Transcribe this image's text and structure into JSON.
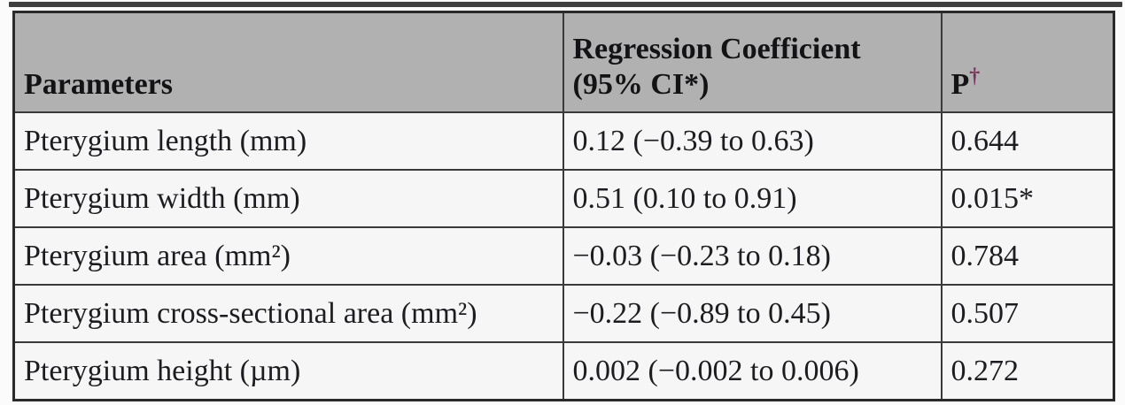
{
  "page": {
    "background_color": "#fbfbfb",
    "top_bar_color": "#3e3e3e"
  },
  "table": {
    "colors": {
      "header_bg": "#b1b1b1",
      "row_bg": "#f6f6f6",
      "border": "#2a2a2a",
      "text": "#1d1d21",
      "dagger": "#79335a"
    },
    "header": {
      "parameters": "Parameters",
      "coefficient_line1": "Regression Coefficient",
      "coefficient_line2": "(95% CI*)",
      "p_label": "P",
      "p_superscript": "†"
    },
    "rows": [
      {
        "parameter": "Pterygium length (mm)",
        "coefficient": "0.12 (−0.39 to 0.63)",
        "p": "0.644"
      },
      {
        "parameter": "Pterygium width (mm)",
        "coefficient": "0.51 (0.10 to 0.91)",
        "p": "0.015*"
      },
      {
        "parameter": "Pterygium area (mm²)",
        "coefficient": "−0.03 (−0.23 to 0.18)",
        "p": "0.784"
      },
      {
        "parameter": "Pterygium cross-sectional area (mm²)",
        "coefficient": "−0.22 (−0.89 to 0.45)",
        "p": "0.507"
      },
      {
        "parameter": "Pterygium height (µm)",
        "coefficient": "0.002 (−0.002 to 0.006)",
        "p": "0.272"
      }
    ]
  },
  "chart_data": {
    "type": "table",
    "title": "",
    "columns": [
      "Parameters",
      "Regression Coefficient (95% CI*)",
      "P†"
    ],
    "rows": [
      [
        "Pterygium length (mm)",
        "0.12 (−0.39 to 0.63)",
        "0.644"
      ],
      [
        "Pterygium width (mm)",
        "0.51 (0.10 to 0.91)",
        "0.015*"
      ],
      [
        "Pterygium area (mm²)",
        "−0.03 (−0.23 to 0.18)",
        "0.784"
      ],
      [
        "Pterygium cross-sectional area (mm²)",
        "−0.22 (−0.89 to 0.45)",
        "0.507"
      ],
      [
        "Pterygium height (µm)",
        "0.002 (−0.002 to 0.006)",
        "0.272"
      ]
    ]
  }
}
